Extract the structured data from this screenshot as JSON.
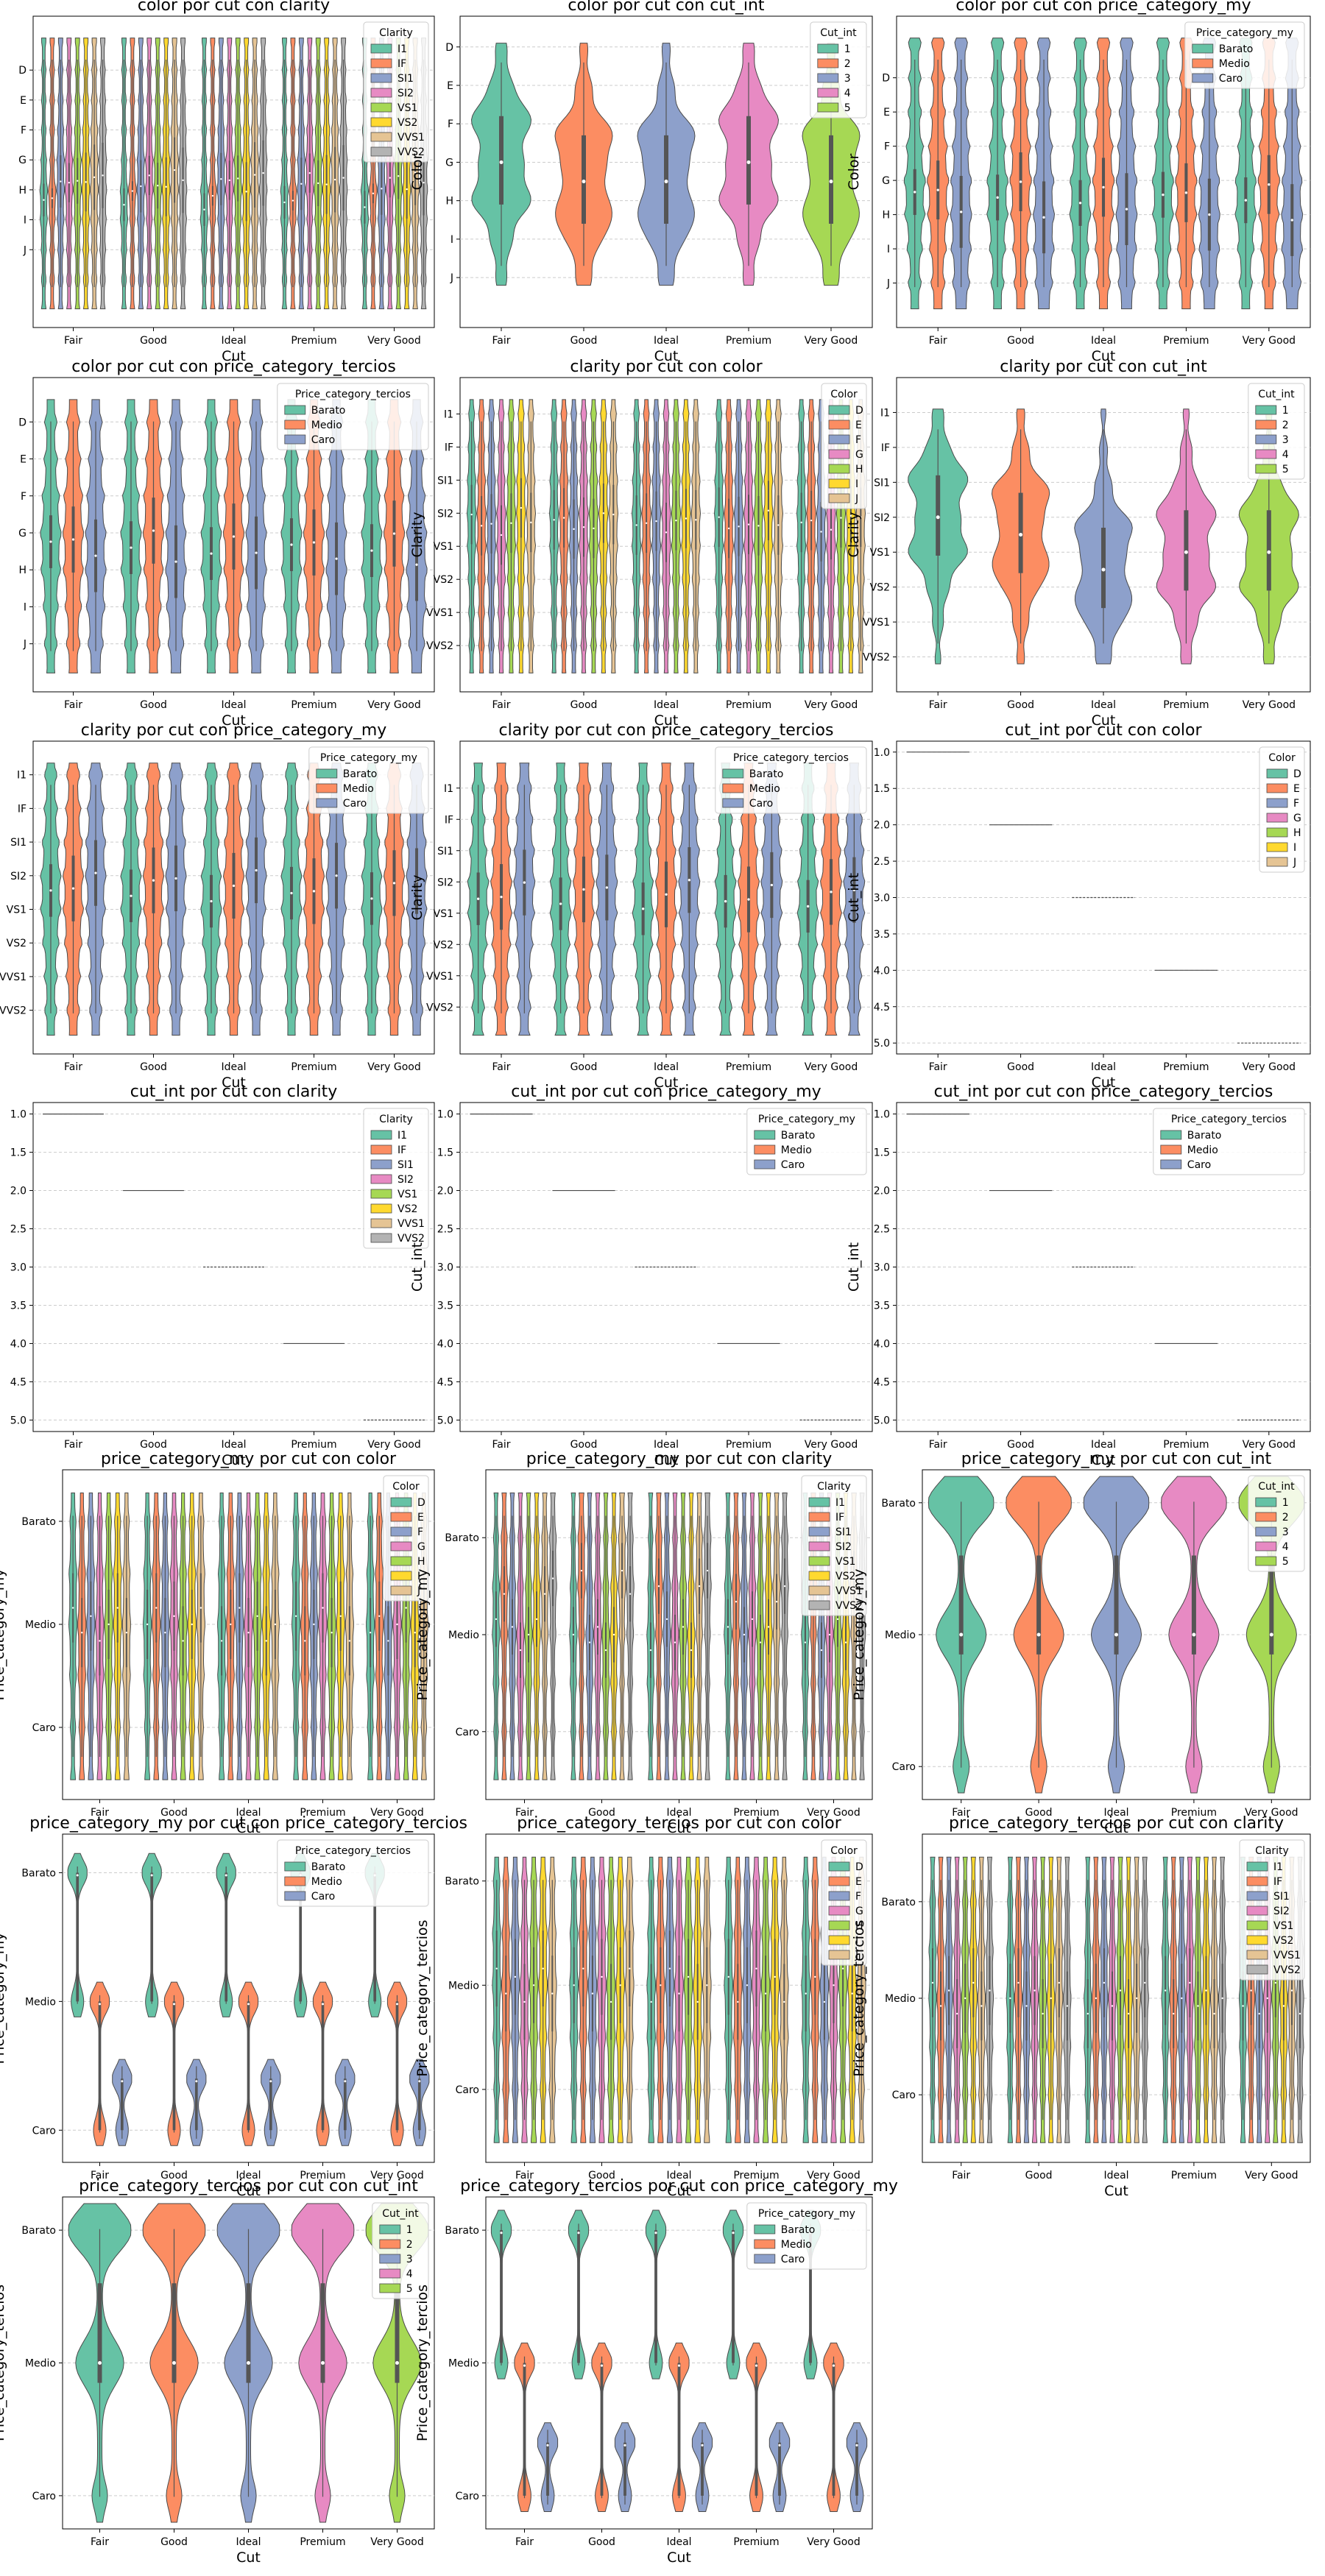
{
  "figure": {
    "cut_categories": [
      "Fair",
      "Good",
      "Ideal",
      "Premium",
      "Very Good"
    ],
    "palette": [
      "#66c2a5",
      "#fc8d62",
      "#8da0cb",
      "#e78ac3",
      "#a6d854",
      "#ffd92f",
      "#e5c494",
      "#b3b3b3"
    ],
    "box_color": "#555555",
    "median_color": "#ffffff",
    "grid_color": "#cccccc"
  },
  "chart_data": [
    {
      "type": "violin",
      "title": "color por cut con clarity",
      "xlabel": "Cut",
      "ylabel": "Color",
      "categories": [
        "Fair",
        "Good",
        "Ideal",
        "Premium",
        "Very Good"
      ],
      "yticks": [
        "D",
        "E",
        "F",
        "G",
        "H",
        "I",
        "J"
      ],
      "ylim": [
        -1.8,
        8.6
      ],
      "legend_title": "Clarity",
      "legend_entries": [
        "I1",
        "IF",
        "SI1",
        "SI2",
        "VS1",
        "VS2",
        "VVS1",
        "VVS2"
      ],
      "legend_pos": "top-right",
      "series_medians": [
        4.5,
        4.2,
        3.8,
        3.6,
        3.7,
        3.9,
        3.5,
        3.6
      ],
      "series_bulk": [
        0.25,
        0.15,
        0.4,
        0.3,
        0.35,
        0.45,
        0.5,
        0.5
      ]
    },
    {
      "type": "violin",
      "title": "color por cut con cut_int",
      "xlabel": "Cut",
      "ylabel": "Color",
      "categories": [
        "Fair",
        "Good",
        "Ideal",
        "Premium",
        "Very Good"
      ],
      "yticks": [
        "D",
        "E",
        "F",
        "G",
        "H",
        "I",
        "J"
      ],
      "ylim": [
        -0.8,
        7.3
      ],
      "legend_title": "Cut_int",
      "legend_entries": [
        "1",
        "2",
        "3",
        "4",
        "5"
      ],
      "legend_pos": "top-right",
      "diagonal": true,
      "cat_medians": [
        3,
        3.5,
        3.5,
        3,
        3.5
      ]
    },
    {
      "type": "violin",
      "title": "color por cut con price_category_my",
      "xlabel": "Cut",
      "ylabel": "Color",
      "categories": [
        "Fair",
        "Good",
        "Ideal",
        "Premium",
        "Very Good"
      ],
      "yticks": [
        "D",
        "E",
        "F",
        "G",
        "H",
        "I",
        "J"
      ],
      "ylim": [
        -1.8,
        7.3
      ],
      "legend_title": "Price_category_my",
      "legend_entries": [
        "Barato",
        "Medio",
        "Caro"
      ],
      "legend_pos": "top-right",
      "series_medians": [
        3.5,
        3.2,
        4.0
      ],
      "series_bulk": [
        0.35,
        0.45,
        0.55
      ]
    },
    {
      "type": "violin",
      "title": "color por cut con price_category_tercios",
      "xlabel": "Cut",
      "ylabel": "Color",
      "categories": [
        "Fair",
        "Good",
        "Ideal",
        "Premium",
        "Very Good"
      ],
      "yticks": [
        "D",
        "E",
        "F",
        "G",
        "H",
        "I",
        "J"
      ],
      "ylim": [
        -1.2,
        7.3
      ],
      "legend_title": "Price_category_tercios",
      "legend_entries": [
        "Barato",
        "Medio",
        "Caro"
      ],
      "legend_pos": "top-right",
      "series_medians": [
        3.4,
        3.1,
        3.7
      ],
      "series_bulk": [
        0.4,
        0.5,
        0.55
      ]
    },
    {
      "type": "violin",
      "title": "clarity por cut con color",
      "xlabel": "Cut",
      "ylabel": "Clarity",
      "categories": [
        "Fair",
        "Good",
        "Ideal",
        "Premium",
        "Very Good"
      ],
      "yticks": [
        "I1",
        "IF",
        "SI1",
        "SI2",
        "VS1",
        "VS2",
        "VVS1",
        "VVS2"
      ],
      "ylim": [
        -1.1,
        8.4
      ],
      "legend_title": "Color",
      "legend_entries": [
        "D",
        "E",
        "F",
        "G",
        "H",
        "I",
        "J"
      ],
      "legend_pos": "top-right",
      "series_medians": [
        3.2,
        3.3,
        3.4,
        3.5,
        3.3,
        3.0,
        3.2
      ],
      "series_bulk": [
        0.45,
        0.45,
        0.45,
        0.45,
        0.45,
        0.45,
        0.45
      ]
    },
    {
      "type": "violin",
      "title": "clarity por cut con cut_int",
      "xlabel": "Cut",
      "ylabel": "Clarity",
      "categories": [
        "Fair",
        "Good",
        "Ideal",
        "Premium",
        "Very Good"
      ],
      "yticks": [
        "I1",
        "IF",
        "SI1",
        "SI2",
        "VS1",
        "VS2",
        "VVS1",
        "VVS2"
      ],
      "ylim": [
        -1.0,
        8.0
      ],
      "legend_title": "Cut_int",
      "legend_entries": [
        "1",
        "2",
        "3",
        "4",
        "5"
      ],
      "legend_pos": "top-right",
      "diagonal": true,
      "cat_medians": [
        3,
        3.5,
        4.5,
        4,
        4
      ]
    },
    {
      "type": "violin",
      "title": "clarity por cut con price_category_my",
      "xlabel": "Cut",
      "ylabel": "Clarity",
      "categories": [
        "Fair",
        "Good",
        "Ideal",
        "Premium",
        "Very Good"
      ],
      "yticks": [
        "I1",
        "IF",
        "SI1",
        "SI2",
        "VS1",
        "VS2",
        "VVS1",
        "VVS2"
      ],
      "ylim": [
        -1.0,
        8.3
      ],
      "legend_title": "Price_category_my",
      "legend_entries": [
        "Barato",
        "Medio",
        "Caro"
      ],
      "legend_pos": "top-right",
      "series_medians": [
        3.6,
        3.3,
        3.0
      ],
      "series_bulk": [
        0.4,
        0.5,
        0.5
      ]
    },
    {
      "type": "violin",
      "title": "clarity por cut con price_category_tercios",
      "xlabel": "Cut",
      "ylabel": "Clarity",
      "categories": [
        "Fair",
        "Good",
        "Ideal",
        "Premium",
        "Very Good"
      ],
      "yticks": [
        "I1",
        "IF",
        "SI1",
        "SI2",
        "VS1",
        "VS2",
        "VVS1",
        "VVS2"
      ],
      "ylim": [
        -1.5,
        8.5
      ],
      "legend_title": "Price_category_tercios",
      "legend_entries": [
        "Barato",
        "Medio",
        "Caro"
      ],
      "legend_pos": "top-right",
      "series_medians": [
        3.7,
        3.4,
        3.1
      ],
      "series_bulk": [
        0.4,
        0.5,
        0.5
      ]
    },
    {
      "type": "violin",
      "title": "cut_int por cut con color",
      "xlabel": "Cut",
      "ylabel": "Cut_int",
      "categories": [
        "Fair",
        "Good",
        "Ideal",
        "Premium",
        "Very Good"
      ],
      "yticks": [
        "1.0",
        "1.5",
        "2.0",
        "2.5",
        "3.0",
        "3.5",
        "4.0",
        "4.5",
        "5.0"
      ],
      "ytick_values": [
        1,
        1.5,
        2,
        2.5,
        3,
        3.5,
        4,
        4.5,
        5
      ],
      "ylim": [
        0.85,
        5.15
      ],
      "legend_title": "Color",
      "legend_entries": [
        "D",
        "E",
        "F",
        "G",
        "H",
        "I",
        "J"
      ],
      "legend_pos": "top-right",
      "flat": true
    },
    {
      "type": "violin",
      "title": "cut_int por cut con clarity",
      "xlabel": "Cut",
      "ylabel": "Cut_int",
      "categories": [
        "Fair",
        "Good",
        "Ideal",
        "Premium",
        "Very Good"
      ],
      "yticks": [
        "1.0",
        "1.5",
        "2.0",
        "2.5",
        "3.0",
        "3.5",
        "4.0",
        "4.5",
        "5.0"
      ],
      "ytick_values": [
        1,
        1.5,
        2,
        2.5,
        3,
        3.5,
        4,
        4.5,
        5
      ],
      "ylim": [
        0.85,
        5.15
      ],
      "legend_title": "Clarity",
      "legend_entries": [
        "I1",
        "IF",
        "SI1",
        "SI2",
        "VS1",
        "VS2",
        "VVS1",
        "VVS2"
      ],
      "legend_pos": "top-right",
      "flat": true
    },
    {
      "type": "violin",
      "title": "cut_int por cut con price_category_my",
      "xlabel": "Cut",
      "ylabel": "Cut_int",
      "categories": [
        "Fair",
        "Good",
        "Ideal",
        "Premium",
        "Very Good"
      ],
      "yticks": [
        "1.0",
        "1.5",
        "2.0",
        "2.5",
        "3.0",
        "3.5",
        "4.0",
        "4.5",
        "5.0"
      ],
      "ytick_values": [
        1,
        1.5,
        2,
        2.5,
        3,
        3.5,
        4,
        4.5,
        5
      ],
      "ylim": [
        0.85,
        5.15
      ],
      "legend_title": "Price_category_my",
      "legend_entries": [
        "Barato",
        "Medio",
        "Caro"
      ],
      "legend_pos": "top-right",
      "flat": true
    },
    {
      "type": "violin",
      "title": "cut_int por cut con price_category_tercios",
      "xlabel": "Cut",
      "ylabel": "Cut_int",
      "categories": [
        "Fair",
        "Good",
        "Ideal",
        "Premium",
        "Very Good"
      ],
      "yticks": [
        "1.0",
        "1.5",
        "2.0",
        "2.5",
        "3.0",
        "3.5",
        "4.0",
        "4.5",
        "5.0"
      ],
      "ytick_values": [
        1,
        1.5,
        2,
        2.5,
        3,
        3.5,
        4,
        4.5,
        5
      ],
      "ylim": [
        0.85,
        5.15
      ],
      "legend_title": "Price_category_tercios",
      "legend_entries": [
        "Barato",
        "Medio",
        "Caro"
      ],
      "legend_pos": "top-right",
      "flat": true
    },
    {
      "type": "violin",
      "title": "price_category_my por cut con color",
      "xlabel": "Cut",
      "ylabel": "Price_category_my",
      "categories": [
        "Fair",
        "Good",
        "Ideal",
        "Premium",
        "Very Good"
      ],
      "yticks": [
        "Barato",
        "Medio",
        "Caro"
      ],
      "ylim": [
        -0.5,
        2.7
      ],
      "legend_title": "Color",
      "legend_entries": [
        "D",
        "E",
        "F",
        "G",
        "H",
        "I",
        "J"
      ],
      "legend_pos": "top-right",
      "series_medians": [
        1,
        1,
        1,
        1,
        1,
        1,
        1
      ],
      "series_bulk": [
        0.5,
        0.5,
        0.5,
        0.5,
        0.5,
        0.5,
        0.5
      ]
    },
    {
      "type": "violin",
      "title": "price_category_my por cut con clarity",
      "xlabel": "Cut",
      "ylabel": "Price_category_my",
      "categories": [
        "Fair",
        "Good",
        "Ideal",
        "Premium",
        "Very Good"
      ],
      "yticks": [
        "Barato",
        "Medio",
        "Caro"
      ],
      "ylim": [
        -0.7,
        2.7
      ],
      "legend_title": "Clarity",
      "legend_entries": [
        "I1",
        "IF",
        "SI1",
        "SI2",
        "VS1",
        "VS2",
        "VVS1",
        "VVS2"
      ],
      "legend_pos": "top-right",
      "series_medians": [
        1,
        0.5,
        1,
        1,
        1,
        1,
        0.5,
        0.5
      ],
      "series_bulk": [
        0.4,
        0.4,
        0.4,
        0.4,
        0.4,
        0.4,
        0.4,
        0.4
      ]
    },
    {
      "type": "violin",
      "title": "price_category_my por cut con cut_int",
      "xlabel": "Cut",
      "ylabel": "Price_category_my",
      "categories": [
        "Fair",
        "Good",
        "Ideal",
        "Premium",
        "Very Good"
      ],
      "yticks": [
        "Barato",
        "Medio",
        "Caro"
      ],
      "ylim": [
        -0.25,
        2.25
      ],
      "legend_title": "Cut_int",
      "legend_entries": [
        "1",
        "2",
        "3",
        "4",
        "5"
      ],
      "legend_pos": "top-right",
      "diagonal": true,
      "trimodal": true,
      "cat_medians": [
        1,
        1,
        1,
        1,
        1
      ]
    },
    {
      "type": "violin",
      "title": "price_category_my por cut con price_category_tercios",
      "xlabel": "Cut",
      "ylabel": "Price_category_my",
      "categories": [
        "Fair",
        "Good",
        "Ideal",
        "Premium",
        "Very Good"
      ],
      "yticks": [
        "Barato",
        "Medio",
        "Caro"
      ],
      "ylim": [
        -0.3,
        2.25
      ],
      "legend_title": "Price_category_tercios",
      "legend_entries": [
        "Barato",
        "Medio",
        "Caro"
      ],
      "legend_pos": "top-right",
      "stepped": true
    },
    {
      "type": "violin",
      "title": "price_category_tercios por cut con color",
      "xlabel": "Cut",
      "ylabel": "Price_category_tercios",
      "categories": [
        "Fair",
        "Good",
        "Ideal",
        "Premium",
        "Very Good"
      ],
      "yticks": [
        "Barato",
        "Medio",
        "Caro"
      ],
      "ylim": [
        -0.45,
        2.7
      ],
      "legend_title": "Color",
      "legend_entries": [
        "D",
        "E",
        "F",
        "G",
        "H",
        "I",
        "J"
      ],
      "legend_pos": "top-right",
      "series_medians": [
        1,
        1,
        1,
        1,
        1,
        1,
        1
      ],
      "series_bulk": [
        0.55,
        0.55,
        0.55,
        0.55,
        0.55,
        0.55,
        0.55
      ]
    },
    {
      "type": "violin",
      "title": "price_category_tercios por cut con clarity",
      "xlabel": "Cut",
      "ylabel": "Price_category_tercios",
      "categories": [
        "Fair",
        "Good",
        "Ideal",
        "Premium",
        "Very Good"
      ],
      "yticks": [
        "Barato",
        "Medio",
        "Caro"
      ],
      "ylim": [
        -0.7,
        2.7
      ],
      "legend_title": "Clarity",
      "legend_entries": [
        "I1",
        "IF",
        "SI1",
        "SI2",
        "VS1",
        "VS2",
        "VVS1",
        "VVS2"
      ],
      "legend_pos": "top-right",
      "series_medians": [
        1,
        1,
        1,
        1,
        1,
        1,
        1,
        1
      ],
      "series_bulk": [
        0.5,
        0.5,
        0.5,
        0.5,
        0.5,
        0.5,
        0.5,
        0.5
      ]
    },
    {
      "type": "violin",
      "title": "price_category_tercios por cut con cut_int",
      "xlabel": "Cut",
      "ylabel": "Price_category_tercios",
      "categories": [
        "Fair",
        "Good",
        "Ideal",
        "Premium",
        "Very Good"
      ],
      "yticks": [
        "Barato",
        "Medio",
        "Caro"
      ],
      "ylim": [
        -0.25,
        2.25
      ],
      "legend_title": "Cut_int",
      "legend_entries": [
        "1",
        "2",
        "3",
        "4",
        "5"
      ],
      "legend_pos": "top-right",
      "diagonal": true,
      "trimodal": true,
      "cat_medians": [
        1,
        1,
        1,
        1,
        1
      ]
    },
    {
      "type": "violin",
      "title": "price_category_tercios por cut con price_category_my",
      "xlabel": "Cut",
      "ylabel": "Price_category_tercios",
      "categories": [
        "Fair",
        "Good",
        "Ideal",
        "Premium",
        "Very Good"
      ],
      "yticks": [
        "Barato",
        "Medio",
        "Caro"
      ],
      "ylim": [
        -0.25,
        2.25
      ],
      "legend_title": "Price_category_my",
      "legend_entries": [
        "Barato",
        "Medio",
        "Caro"
      ],
      "legend_pos": "top-right",
      "stepped": true
    }
  ]
}
